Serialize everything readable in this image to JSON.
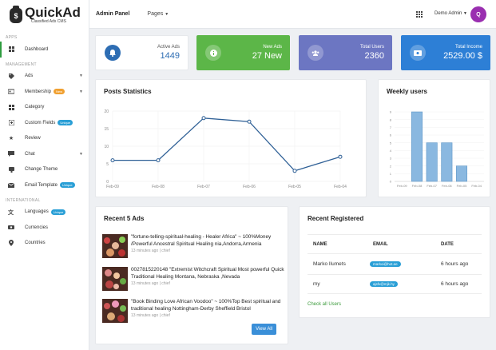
{
  "brand": {
    "name": "QuickAd",
    "subtitle": "Classified Ads CMS",
    "logo_letter": "$"
  },
  "sidebar": {
    "sections": [
      "APPS",
      "MANAGEMENT",
      "INTERNATIONAL"
    ],
    "items": [
      {
        "label": "Dashboard",
        "icon": "dashboard-icon"
      },
      {
        "label": "Ads",
        "icon": "tag-icon"
      },
      {
        "label": "Membership",
        "icon": "membership-icon",
        "badge": "New"
      },
      {
        "label": "Category",
        "icon": "category-icon"
      },
      {
        "label": "Custom Fields",
        "icon": "custom-fields-icon",
        "badge": "Unique"
      },
      {
        "label": "Review",
        "icon": "star-icon"
      },
      {
        "label": "Chat",
        "icon": "chat-icon"
      },
      {
        "label": "Change Theme",
        "icon": "theme-icon"
      },
      {
        "label": "Email Template",
        "icon": "email-icon",
        "badge": "Unique"
      },
      {
        "label": "Languages",
        "icon": "language-icon",
        "badge": "Unique"
      },
      {
        "label": "Currencies",
        "icon": "currency-icon"
      },
      {
        "label": "Countries",
        "icon": "location-icon"
      }
    ]
  },
  "topbar": {
    "title": "Admin Panel",
    "pages": "Pages",
    "user": "Demo Admin",
    "avatar_letter": "Q"
  },
  "stats": [
    {
      "label": "Active Ads",
      "value": "1449",
      "icon": "bell-icon"
    },
    {
      "label": "New Ads",
      "value": "27 New",
      "icon": "info-icon"
    },
    {
      "label": "Total Users",
      "value": "2360",
      "icon": "users-icon"
    },
    {
      "label": "Total Income",
      "value": "2529.00 $",
      "icon": "money-icon"
    }
  ],
  "posts_chart": {
    "title": "Posts Statistics",
    "chart_data": {
      "type": "line",
      "categories": [
        "Feb-09",
        "Feb-08",
        "Feb-07",
        "Feb-06",
        "Feb-05",
        "Feb-04"
      ],
      "values": [
        6,
        6,
        18,
        17,
        3,
        7
      ],
      "yticks": [
        0,
        5,
        10,
        15,
        20
      ],
      "ylim": [
        0,
        20
      ],
      "color": "#2f6096"
    }
  },
  "weekly_chart": {
    "title": "Weekly users",
    "chart_data": {
      "type": "bar",
      "categories": [
        "Feb-09",
        "Feb-08",
        "Feb-07",
        "Feb-06",
        "Feb-05",
        "Feb-04"
      ],
      "values": [
        0,
        9,
        5,
        5,
        2,
        0
      ],
      "yticks": [
        0,
        1,
        2,
        3,
        4,
        5,
        6,
        7,
        8,
        9
      ],
      "ylim": [
        0,
        9
      ],
      "color": "#8ab8e0"
    }
  },
  "recent_ads": {
    "title": "Recent 5 Ads",
    "items": [
      {
        "title": "\"fortune-telling-spiritual-healing - Healer Africa\" ~ 100%Money /Powerful Ancestral Spiritual Healing nia,Andorra,Armenia",
        "meta": "13 minutes ago | chief"
      },
      {
        "title": "0027815220148 \"Extremist Witchcraft Spiritual Most powerful Quick Traditional Healing Montana, Nebraska ,Nevada",
        "meta": "13 minutes ago | chief"
      },
      {
        "title": "\"Book Binding Love African Voodoo\" ~ 100%Top Best spiritual and traditional healing Nottingham-Derby Sheffield Bristol",
        "meta": "13 minutes ago | chief"
      }
    ],
    "view_all": "View All"
  },
  "recent_registered": {
    "title": "Recent Registered",
    "headers": [
      "NAME",
      "EMAIL",
      "DATE"
    ],
    "rows": [
      {
        "name": "Marko Ilumets",
        "email": "markoi@hot.ee",
        "date": "6 hours ago"
      },
      {
        "name": "my",
        "email": "ajsfv@mjk.hy",
        "date": "6 hours ago"
      }
    ],
    "check_all": "Check all Users"
  }
}
